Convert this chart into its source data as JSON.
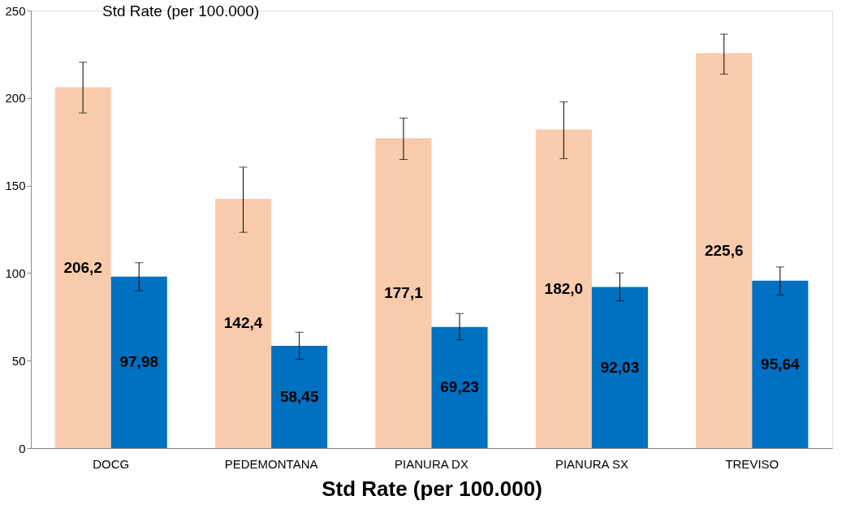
{
  "chart_data": {
    "type": "bar",
    "title": "Std Rate (per 100.000)",
    "xlabel": "Std Rate (per 100.000)",
    "categories": [
      "DOCG",
      "PEDEMONTANA",
      "PIANURA DX",
      "PIANURA SX",
      "TREVISO"
    ],
    "series": [
      {
        "color": "#f8cbad",
        "values": [
          206.2,
          142.4,
          177.1,
          182.0,
          225.6
        ],
        "value_labels": [
          "206,2",
          "142,4",
          "177,1",
          "182,0",
          "225,6"
        ],
        "errors": [
          [
            191.5,
            220.5
          ],
          [
            123.3,
            160.5
          ],
          [
            164.9,
            188.6
          ],
          [
            165.4,
            197.8
          ],
          [
            213.7,
            236.5
          ]
        ]
      },
      {
        "color": "#0070c0",
        "values": [
          97.98,
          58.45,
          69.23,
          92.03,
          95.64
        ],
        "value_labels": [
          "97,98",
          "58,45",
          "69,23",
          "92,03",
          "95,64"
        ],
        "errors": [
          [
            89.9,
            105.9
          ],
          [
            50.8,
            66.2
          ],
          [
            61.9,
            76.9
          ],
          [
            84.1,
            100.1
          ],
          [
            87.5,
            103.5
          ]
        ]
      }
    ],
    "ylim": [
      0,
      250
    ],
    "yticks": [
      0,
      50,
      100,
      150,
      200,
      250
    ],
    "grid": false,
    "legend": false
  }
}
